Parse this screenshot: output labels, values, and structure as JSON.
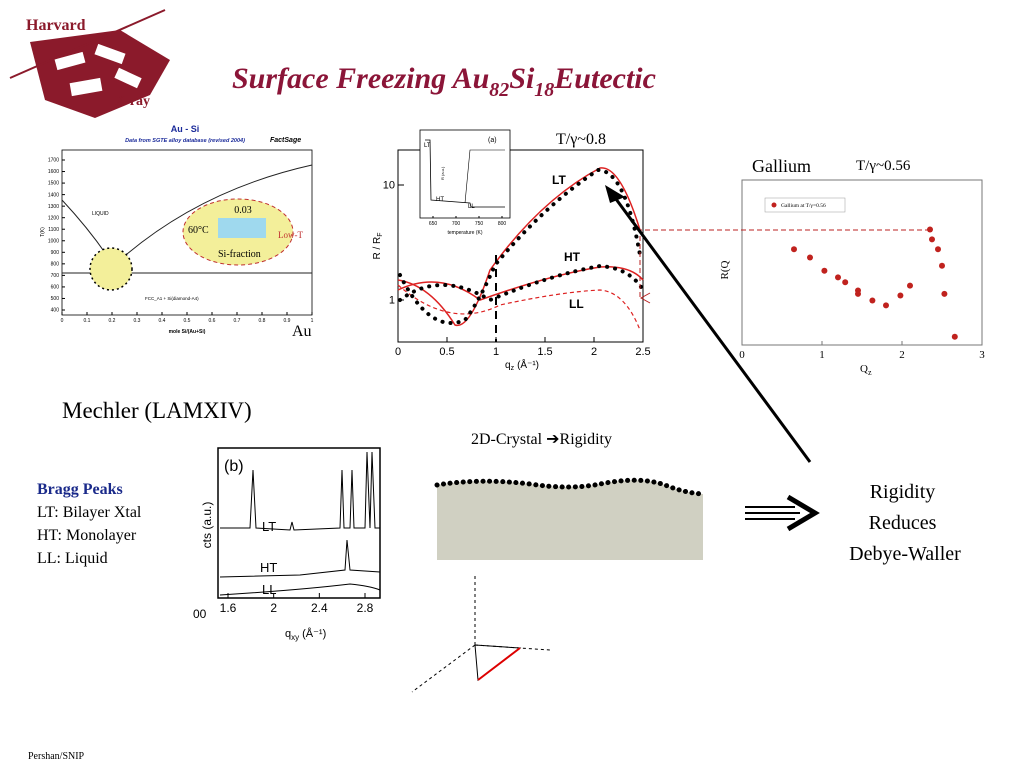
{
  "header": {
    "logo_top": "Harvard",
    "logo_bottom": "X-ray",
    "title": [
      "Surface Freezing  Au",
      "82",
      "Si",
      "18",
      "Eutectic"
    ]
  },
  "phase_diagram": {
    "title": "Au - Si",
    "subtitle": "Data from SGTE alloy database (revised 2004)",
    "brand": "FactSage",
    "yticks": [
      1700,
      1600,
      1500,
      1400,
      1300,
      1200,
      1100,
      1000,
      900,
      800,
      700,
      600,
      500,
      400
    ],
    "xticks": [
      0,
      0.1,
      0.2,
      0.3,
      0.4,
      0.5,
      0.6,
      0.7,
      0.8,
      0.9,
      1
    ],
    "y_label": "T(K)",
    "x_label": "mole Si/(Au+Si)",
    "liquid_label": "LIQUID",
    "phase_label": "FCC_A1 + Si(diamond-A4)",
    "inset": {
      "fraction": "0.03",
      "temperature": "60°C",
      "axis": "Si-fraction",
      "arrow": "Low-T"
    },
    "side_label": "Au"
  },
  "reflectivity": {
    "annotation": "T/γ~0.8",
    "y_label": "R / R",
    "y_label_sub": "F",
    "x_label": "q",
    "x_label_sub": "z",
    "x_unit": "(Å⁻¹)",
    "xticks": [
      0,
      0.5,
      1,
      1.5,
      2,
      2.5
    ],
    "yticks": [
      1,
      10
    ],
    "log_y": true,
    "curves": [
      "LT",
      "HT",
      "LL"
    ],
    "inset": {
      "panel": "(a)",
      "y_label": "R (a.u.)",
      "x_label": "temperature (K)",
      "xticks": [
        650,
        700,
        750,
        800
      ],
      "curves": [
        "LT",
        "HT",
        "LL"
      ]
    }
  },
  "gallium": {
    "title": "Gallium",
    "annotation": "T/γ~0.56",
    "legend": "Gallium at T/γ=0.56",
    "x_label": "Q",
    "x_label_sub": "z",
    "y_label": "R(Q",
    "xticks": [
      0,
      1,
      2,
      3
    ],
    "xlim": [
      0,
      3
    ],
    "ylim": [
      0,
      1
    ],
    "color": "#c0221e",
    "x": [
      0.65,
      0.85,
      1.03,
      1.2,
      1.29,
      1.45,
      1.45,
      1.63,
      1.8,
      1.98,
      2.1,
      2.35,
      2.375,
      2.45,
      2.5,
      2.53,
      2.66
    ],
    "y": [
      0.58,
      0.53,
      0.45,
      0.41,
      0.38,
      0.33,
      0.31,
      0.27,
      0.24,
      0.3,
      0.36,
      0.7,
      0.64,
      0.58,
      0.48,
      0.31,
      0.05
    ]
  },
  "reference": "Mechler (LAMXIV)",
  "bragg": {
    "panel": "(b)",
    "y_label": "cts (a.u.)",
    "x_label": "q",
    "x_label_sub": "xy",
    "x_unit": "(Å⁻¹)",
    "xticks": [
      1.6,
      2,
      2.4,
      2.8
    ],
    "clipped_tick": "00",
    "curves": [
      "LT",
      "HT",
      "LL"
    ]
  },
  "notes": {
    "heading": "Bragg Peaks",
    "lines": [
      "LT: Bilayer Xtal",
      "HT: Monolayer",
      "LL: Liquid"
    ]
  },
  "crystal": {
    "label": "2D-Crystal ",
    "arrow": "➔",
    "result": "Rigidity"
  },
  "conclusion": [
    "Rigidity",
    "Reduces",
    "Debye-Waller"
  ],
  "footer": "Pershan/SNIP"
}
